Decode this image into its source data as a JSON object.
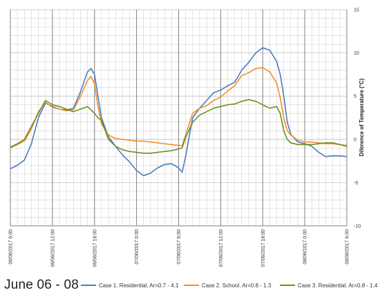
{
  "caption": "June 06 - 08",
  "colors": {
    "case1": "#4a7bbd",
    "case2": "#f28e2b",
    "case3": "#6b8e23",
    "grid": "#c9c9c9",
    "major_grid": "#7f7f7f"
  },
  "chart_data": {
    "type": "line",
    "title": "",
    "xlabel": "",
    "ylabel": "Diference of Temperature (°C)",
    "y_axis_side": "right",
    "ylim": [
      -10,
      15
    ],
    "yticks": [
      15,
      10,
      5,
      0,
      -5,
      -10
    ],
    "xlim": [
      "06/06/2017 6:00",
      "08/06/2017 6:00"
    ],
    "x_unit": "hours after 06/06/2017 0:00",
    "xticks": [
      {
        "x": 6,
        "label": "06/06/2017 6:00"
      },
      {
        "x": 12,
        "label": "06/06/2017 12:00"
      },
      {
        "x": 18,
        "label": "06/06/2017 18:00"
      },
      {
        "x": 24,
        "label": "07/06/2017 0:00"
      },
      {
        "x": 30,
        "label": "07/06/2017 6:00"
      },
      {
        "x": 36,
        "label": "07/06/2017 12:00"
      },
      {
        "x": 42,
        "label": "07/06/2017 18:00"
      },
      {
        "x": 48,
        "label": "08/06/2017 0:00"
      },
      {
        "x": 54,
        "label": "08/06/2017 6:00"
      }
    ],
    "grid": true,
    "legend": "bottom",
    "series": [
      {
        "name": "Case 1. Residential. Ar=0.7 - 4.1",
        "color": "#4a7bbd",
        "x": [
          6,
          7,
          8,
          9,
          10,
          11,
          12,
          13,
          14,
          15,
          16,
          17,
          17.5,
          18,
          18.5,
          19,
          20,
          21,
          22,
          23,
          24,
          25,
          26,
          27,
          28,
          29,
          30,
          30.5,
          31,
          32,
          33,
          34,
          35,
          36,
          37,
          38,
          39,
          40,
          41,
          42,
          43,
          44,
          44.5,
          45,
          45.5,
          46,
          47,
          48,
          49,
          50,
          51,
          52,
          53,
          54
        ],
        "y": [
          -3.4,
          -3.0,
          -2.4,
          -0.5,
          2.5,
          4.2,
          3.8,
          3.5,
          3.4,
          3.6,
          5.5,
          7.8,
          8.2,
          7.5,
          5.0,
          2.5,
          0.3,
          -0.8,
          -1.8,
          -2.6,
          -3.6,
          -4.2,
          -3.9,
          -3.3,
          -2.9,
          -2.8,
          -3.3,
          -3.8,
          -2.0,
          2.5,
          3.6,
          4.5,
          5.4,
          5.7,
          6.2,
          6.6,
          8.0,
          8.9,
          10.0,
          10.6,
          10.3,
          9.0,
          7.5,
          5.0,
          2.0,
          0.6,
          -0.3,
          -0.5,
          -0.8,
          -1.5,
          -2.0,
          -1.9,
          -1.9,
          -2.0
        ]
      },
      {
        "name": "Case 2. School. Ar=0.8 - 1.3",
        "color": "#f28e2b",
        "x": [
          6,
          7,
          8,
          9,
          10,
          11,
          12,
          13,
          14,
          15,
          16,
          17,
          17.5,
          18,
          18.5,
          19,
          20,
          21,
          22,
          23,
          24,
          25,
          26,
          27,
          28,
          29,
          30,
          30.5,
          31,
          32,
          33,
          34,
          35,
          36,
          37,
          38,
          39,
          40,
          41,
          42,
          43,
          44,
          44.5,
          45,
          45.5,
          46,
          47,
          48,
          49,
          50,
          51,
          52,
          53,
          54
        ],
        "y": [
          -1.0,
          -0.6,
          -0.2,
          1.2,
          3.2,
          4.3,
          3.7,
          3.5,
          3.3,
          3.4,
          5.0,
          6.8,
          7.3,
          6.4,
          3.8,
          1.8,
          0.5,
          0.1,
          0.0,
          -0.1,
          -0.2,
          -0.2,
          -0.3,
          -0.4,
          -0.5,
          -0.6,
          -0.7,
          -0.7,
          0.5,
          3.0,
          3.6,
          3.9,
          4.5,
          4.9,
          5.6,
          6.2,
          7.4,
          7.7,
          8.2,
          8.3,
          7.8,
          6.5,
          4.8,
          2.5,
          1.0,
          0.5,
          -0.1,
          -0.3,
          -0.3,
          -0.4,
          -0.5,
          -0.5,
          -0.6,
          -0.7
        ]
      },
      {
        "name": "Case 3. Residential. Ar=0.8 - 1.4",
        "color": "#6b8e23",
        "x": [
          6,
          7,
          8,
          9,
          10,
          11,
          12,
          13,
          14,
          15,
          16,
          17,
          17.5,
          18,
          18.5,
          19,
          20,
          21,
          22,
          23,
          24,
          25,
          26,
          27,
          28,
          29,
          30,
          30.5,
          31,
          32,
          33,
          34,
          35,
          36,
          37,
          38,
          39,
          40,
          41,
          42,
          43,
          44,
          44.5,
          45,
          45.5,
          46,
          47,
          48,
          49,
          50,
          51,
          52,
          53,
          54
        ],
        "y": [
          -0.9,
          -0.5,
          0.0,
          1.5,
          3.0,
          4.5,
          4.0,
          3.8,
          3.5,
          3.2,
          3.5,
          3.8,
          3.4,
          3.0,
          2.5,
          2.2,
          0.0,
          -0.8,
          -1.2,
          -1.4,
          -1.5,
          -1.6,
          -1.6,
          -1.5,
          -1.4,
          -1.3,
          -1.1,
          -1.0,
          0.2,
          2.0,
          2.8,
          3.2,
          3.6,
          3.8,
          4.0,
          4.1,
          4.4,
          4.6,
          4.4,
          4.0,
          3.6,
          3.8,
          3.0,
          1.0,
          0.0,
          -0.4,
          -0.6,
          -0.6,
          -0.6,
          -0.5,
          -0.4,
          -0.4,
          -0.6,
          -0.8
        ]
      }
    ]
  }
}
